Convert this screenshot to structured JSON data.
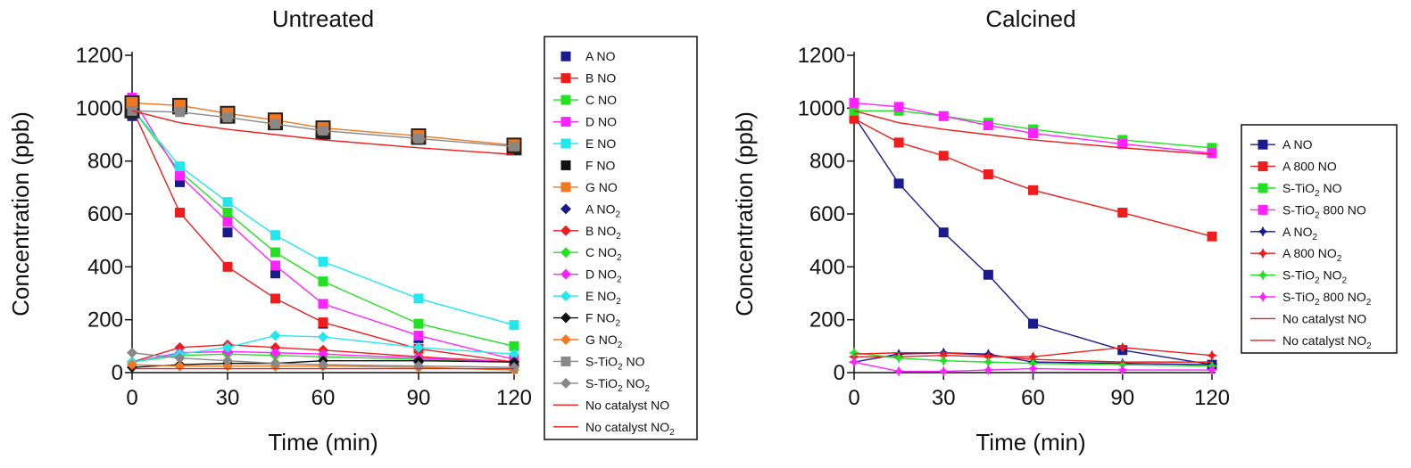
{
  "chart_data": [
    {
      "type": "line",
      "title": "Untreated",
      "xlabel": "Time (min)",
      "ylabel": "Concentration (ppb)",
      "xlim": [
        0,
        120
      ],
      "ylim": [
        0,
        1200
      ],
      "xticks": [
        0,
        30,
        60,
        90,
        120
      ],
      "yticks": [
        0,
        200,
        400,
        600,
        800,
        1000,
        1200
      ],
      "legend_position": "right",
      "x": [
        0,
        15,
        30,
        45,
        60,
        90,
        120
      ],
      "series": [
        {
          "name": "A NO",
          "color": "#1a1a8c",
          "marker": "square",
          "line": false,
          "values": [
            970,
            720,
            530,
            375,
            185,
            130,
            50
          ]
        },
        {
          "name": "B NO",
          "color": "#ee1c1c",
          "marker": "square",
          "line": true,
          "values": [
            1000,
            605,
            400,
            280,
            190,
            90,
            40
          ]
        },
        {
          "name": "C NO",
          "color": "#22e022",
          "marker": "square",
          "line": true,
          "values": [
            1000,
            760,
            605,
            455,
            345,
            185,
            100
          ]
        },
        {
          "name": "D NO",
          "color": "#ff22ff",
          "marker": "square",
          "line": true,
          "values": [
            1040,
            745,
            570,
            405,
            260,
            140,
            50
          ]
        },
        {
          "name": "E NO",
          "color": "#22e8ee",
          "marker": "square",
          "line": true,
          "values": [
            1000,
            780,
            645,
            520,
            420,
            280,
            180
          ]
        },
        {
          "name": "F NO",
          "color": "#111111",
          "marker": "square",
          "line": false,
          "values": [
            990,
            1005,
            970,
            945,
            910,
            890,
            850
          ]
        },
        {
          "name": "G NO",
          "color": "#f07820",
          "marker": "square",
          "line": true,
          "values": [
            1020,
            1010,
            980,
            955,
            925,
            895,
            860
          ]
        },
        {
          "name": "A NO2",
          "color": "#1a1a8c",
          "marker": "diamond",
          "line": false,
          "values": [
            40,
            70,
            75,
            70,
            60,
            40,
            30
          ]
        },
        {
          "name": "B NO2",
          "color": "#ee1c1c",
          "marker": "diamond",
          "line": true,
          "values": [
            40,
            95,
            105,
            95,
            85,
            60,
            40
          ]
        },
        {
          "name": "C NO2",
          "color": "#22e022",
          "marker": "diamond",
          "line": true,
          "values": [
            40,
            65,
            70,
            65,
            60,
            50,
            40
          ]
        },
        {
          "name": "D NO2",
          "color": "#ff22ff",
          "marker": "diamond",
          "line": true,
          "values": [
            40,
            75,
            80,
            75,
            70,
            55,
            40
          ]
        },
        {
          "name": "E NO2",
          "color": "#22e8ee",
          "marker": "diamond",
          "line": true,
          "values": [
            40,
            70,
            95,
            140,
            135,
            95,
            70
          ]
        },
        {
          "name": "F NO2",
          "color": "#111111",
          "marker": "diamond",
          "line": true,
          "values": [
            20,
            30,
            35,
            35,
            45,
            45,
            40
          ]
        },
        {
          "name": "G NO2",
          "color": "#f07820",
          "marker": "diamond",
          "line": true,
          "values": [
            30,
            25,
            25,
            25,
            25,
            20,
            10
          ]
        },
        {
          "name": "S-TiO2 NO",
          "color": "#888888",
          "marker": "square",
          "line": true,
          "values": [
            990,
            985,
            965,
            940,
            915,
            885,
            855
          ]
        },
        {
          "name": "S-TiO2 NO2",
          "color": "#888888",
          "marker": "diamond",
          "line": true,
          "values": [
            75,
            55,
            45,
            35,
            30,
            25,
            20
          ]
        },
        {
          "name": "No catalyst NO",
          "color": "#ee1c1c",
          "marker": "none",
          "line": true,
          "values": [
            990,
            945,
            920,
            900,
            880,
            850,
            825
          ]
        },
        {
          "name": "No catalyst NO2",
          "color": "#ee1c1c",
          "marker": "none",
          "line": true,
          "values": [
            15,
            15,
            15,
            15,
            15,
            15,
            15
          ]
        }
      ]
    },
    {
      "type": "line",
      "title": "Calcined",
      "xlabel": "Time (min)",
      "ylabel": "Concentration (ppb)",
      "xlim": [
        0,
        120
      ],
      "ylim": [
        0,
        1200
      ],
      "xticks": [
        0,
        30,
        60,
        90,
        120
      ],
      "yticks": [
        0,
        200,
        400,
        600,
        800,
        1000,
        1200
      ],
      "legend_position": "right",
      "x": [
        0,
        15,
        30,
        45,
        60,
        90,
        120
      ],
      "series": [
        {
          "name": "A NO",
          "color": "#1a1a8c",
          "marker": "square",
          "line": true,
          "values": [
            970,
            715,
            530,
            370,
            185,
            85,
            30
          ]
        },
        {
          "name": "A 800 NO",
          "color": "#ee1c1c",
          "marker": "square",
          "line": true,
          "values": [
            960,
            870,
            820,
            750,
            690,
            605,
            515
          ]
        },
        {
          "name": "S-TiO2 NO",
          "color": "#22e022",
          "marker": "square",
          "line": true,
          "values": [
            990,
            990,
            970,
            945,
            920,
            880,
            850
          ]
        },
        {
          "name": "S-TiO2 800 NO",
          "color": "#ff22ff",
          "marker": "square",
          "line": true,
          "values": [
            1020,
            1005,
            970,
            935,
            905,
            865,
            830
          ]
        },
        {
          "name": "A NO2",
          "color": "#1a1a8c",
          "marker": "star",
          "line": true,
          "values": [
            40,
            70,
            75,
            70,
            40,
            35,
            30
          ]
        },
        {
          "name": "A 800 NO2",
          "color": "#ee1c1c",
          "marker": "star",
          "line": true,
          "values": [
            60,
            60,
            65,
            60,
            60,
            95,
            65
          ]
        },
        {
          "name": "S-TiO2 NO2",
          "color": "#22e022",
          "marker": "star",
          "line": true,
          "values": [
            75,
            55,
            45,
            40,
            35,
            30,
            25
          ]
        },
        {
          "name": "S-TiO2 800 NO2",
          "color": "#ff22ff",
          "marker": "star",
          "line": true,
          "values": [
            40,
            5,
            5,
            10,
            15,
            10,
            10
          ]
        },
        {
          "name": "No catalyst NO",
          "color": "#ee1c1c",
          "marker": "none",
          "line": true,
          "values": [
            990,
            945,
            920,
            900,
            880,
            850,
            825
          ]
        },
        {
          "name": "No catalyst NO2",
          "color": "#ee1c1c",
          "marker": "none",
          "line": true,
          "values": [
            70,
            75,
            75,
            65,
            50,
            40,
            40
          ]
        }
      ]
    }
  ],
  "legend_left": [
    {
      "pre": "A NO",
      "sub": "",
      "post": ""
    },
    {
      "pre": "B NO",
      "sub": "",
      "post": ""
    },
    {
      "pre": "C NO",
      "sub": "",
      "post": ""
    },
    {
      "pre": "D NO",
      "sub": "",
      "post": ""
    },
    {
      "pre": "E NO",
      "sub": "",
      "post": ""
    },
    {
      "pre": "F NO",
      "sub": "",
      "post": ""
    },
    {
      "pre": "G NO",
      "sub": "",
      "post": ""
    },
    {
      "pre": "A NO",
      "sub": "2",
      "post": ""
    },
    {
      "pre": "B NO",
      "sub": "2",
      "post": ""
    },
    {
      "pre": "C NO",
      "sub": "2",
      "post": ""
    },
    {
      "pre": "D NO",
      "sub": "2",
      "post": ""
    },
    {
      "pre": "E NO",
      "sub": "2",
      "post": ""
    },
    {
      "pre": "F NO",
      "sub": "2",
      "post": ""
    },
    {
      "pre": "G NO",
      "sub": "2",
      "post": ""
    },
    {
      "pre": "S-TiO",
      "sub": "2",
      "post": " NO"
    },
    {
      "pre": "S-TiO",
      "sub": "2",
      "post": " NO",
      "sub2": "2"
    },
    {
      "pre": "No catalyst NO",
      "sub": "",
      "post": ""
    },
    {
      "pre": "No catalyst NO",
      "sub": "2",
      "post": ""
    }
  ],
  "legend_right": [
    {
      "pre": "A NO",
      "sub": "",
      "post": ""
    },
    {
      "pre": "A 800 NO",
      "sub": "",
      "post": ""
    },
    {
      "pre": "S-TiO",
      "sub": "2",
      "post": " NO"
    },
    {
      "pre": "S-TiO",
      "sub": "2",
      "post": " 800 NO"
    },
    {
      "pre": "A NO",
      "sub": "2",
      "post": ""
    },
    {
      "pre": "A 800 NO",
      "sub": "2",
      "post": ""
    },
    {
      "pre": "S-TiO",
      "sub": "2",
      "post": " NO",
      "sub2": "2"
    },
    {
      "pre": "S-TiO",
      "sub": "2",
      "post": " 800 NO",
      "sub2": "2"
    },
    {
      "pre": "No catalyst NO",
      "sub": "",
      "post": ""
    },
    {
      "pre": "No catalyst NO",
      "sub": "2",
      "post": ""
    }
  ]
}
